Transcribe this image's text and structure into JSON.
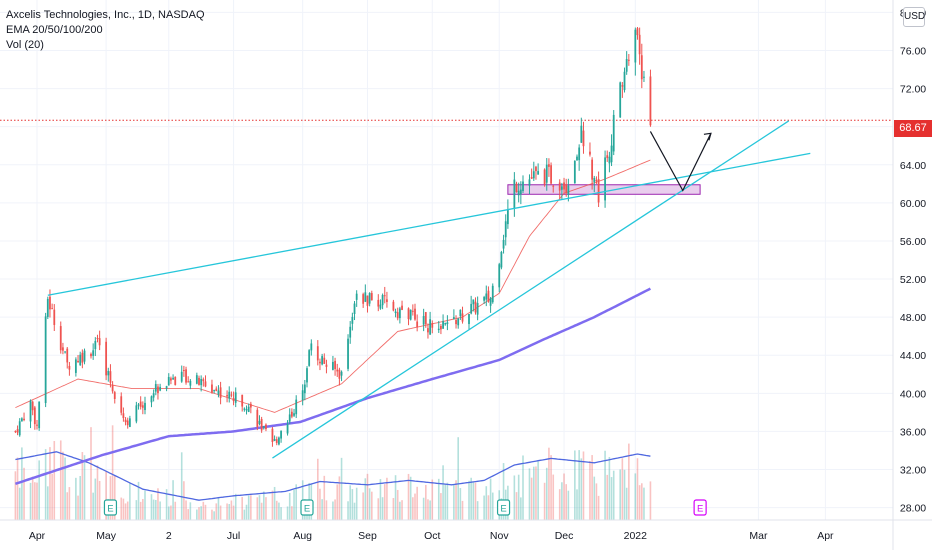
{
  "legend": {
    "symbol": "Axcelis Technologies, Inc., 1D, NASDAQ",
    "ema": "EMA 20/50/100/200",
    "vol": "Vol (20)"
  },
  "currency": "USD",
  "last_price": "68.67",
  "colors": {
    "up": "#26a69a",
    "down": "#ef5350",
    "ema20": "#ef5350",
    "ema100": "#7e6cf0",
    "vol_ma": "#4f68e0",
    "trendline": "#26c6da",
    "zone_fill": "#e1bee7",
    "zone_border": "#9c27b0",
    "earnings": "#26a69a",
    "earnings_upcoming": "#d500f9"
  },
  "chart_data": {
    "type": "candlestick",
    "price_axis": {
      "ticks": [
        "80.00",
        "76.00",
        "72.00",
        "68.00",
        "64.00",
        "60.00",
        "56.00",
        "52.00",
        "48.00",
        "44.00",
        "40.00",
        "36.00",
        "32.00",
        "28.00"
      ],
      "ylim": [
        26.7,
        81.3
      ]
    },
    "time_axis": {
      "ticks": [
        "Apr",
        "May",
        "2",
        "Jul",
        "Aug",
        "Sep",
        "Oct",
        "Nov",
        "Dec",
        "2022",
        "Mar",
        "Apr"
      ]
    },
    "price_anchors": [
      [
        "2021-03-22",
        36
      ],
      [
        "2021-03-29",
        39
      ],
      [
        "2021-04-01",
        36.5
      ],
      [
        "2021-04-06",
        50
      ],
      [
        "2021-04-15",
        43
      ],
      [
        "2021-04-29",
        45
      ],
      [
        "2021-05-12",
        37
      ],
      [
        "2021-05-26",
        40.5
      ],
      [
        "2021-06-07",
        42
      ],
      [
        "2021-06-21",
        40.5
      ],
      [
        "2021-07-07",
        39
      ],
      [
        "2021-07-19",
        34.5
      ],
      [
        "2021-08-02",
        40
      ],
      [
        "2021-08-05",
        45
      ],
      [
        "2021-08-13",
        43
      ],
      [
        "2021-08-20",
        42
      ],
      [
        "2021-08-26",
        50
      ],
      [
        "2021-09-08",
        49.5
      ],
      [
        "2021-09-22",
        48
      ],
      [
        "2021-10-04",
        46.5
      ],
      [
        "2021-10-20",
        49
      ],
      [
        "2021-10-28",
        50
      ],
      [
        "2021-11-05",
        59
      ],
      [
        "2021-11-08",
        62
      ],
      [
        "2021-11-22",
        63
      ],
      [
        "2021-12-03",
        62
      ],
      [
        "2021-12-09",
        67.5
      ],
      [
        "2021-12-17",
        61
      ],
      [
        "2021-12-23",
        67
      ],
      [
        "2021-12-29",
        74
      ],
      [
        "2022-01-04",
        78
      ],
      [
        "2022-01-07",
        72
      ],
      [
        "2022-01-10",
        68.7
      ]
    ],
    "ema20_anchors": [
      [
        "2021-03-22",
        38.5
      ],
      [
        "2021-04-20",
        41.5
      ],
      [
        "2021-05-15",
        40.5
      ],
      [
        "2021-06-15",
        40.5
      ],
      [
        "2021-07-20",
        38
      ],
      [
        "2021-08-20",
        41
      ],
      [
        "2021-09-15",
        46.5
      ],
      [
        "2021-10-15",
        48
      ],
      [
        "2021-11-01",
        50.5
      ],
      [
        "2021-11-15",
        56.5
      ],
      [
        "2021-12-01",
        61
      ],
      [
        "2021-12-20",
        62.5
      ],
      [
        "2022-01-10",
        64.5
      ]
    ],
    "ema100_anchors": [
      [
        "2021-03-22",
        30.5
      ],
      [
        "2021-05-01",
        33.5
      ],
      [
        "2021-06-01",
        35.5
      ],
      [
        "2021-07-01",
        36
      ],
      [
        "2021-08-01",
        37
      ],
      [
        "2021-09-01",
        39.5
      ],
      [
        "2021-10-01",
        41.5
      ],
      [
        "2021-11-01",
        43.5
      ],
      [
        "2021-11-20",
        45.5
      ],
      [
        "2021-12-15",
        48
      ],
      [
        "2022-01-10",
        51
      ]
    ],
    "volume_ma_anchors": [
      [
        "2021-03-22",
        0.55
      ],
      [
        "2021-04-10",
        0.62
      ],
      [
        "2021-04-25",
        0.52
      ],
      [
        "2021-05-20",
        0.28
      ],
      [
        "2021-06-15",
        0.18
      ],
      [
        "2021-07-01",
        0.22
      ],
      [
        "2021-07-25",
        0.26
      ],
      [
        "2021-08-10",
        0.35
      ],
      [
        "2021-09-01",
        0.32
      ],
      [
        "2021-09-20",
        0.36
      ],
      [
        "2021-10-10",
        0.32
      ],
      [
        "2021-10-25",
        0.36
      ],
      [
        "2021-11-08",
        0.5
      ],
      [
        "2021-11-25",
        0.56
      ],
      [
        "2021-12-15",
        0.52
      ],
      [
        "2022-01-04",
        0.6
      ],
      [
        "2022-01-10",
        0.58
      ]
    ],
    "overlay_lines": [
      {
        "name": "trendline-upper",
        "from": [
          "2021-04-06",
          50.3
        ],
        "to": [
          "2022-03-25",
          65.2
        ]
      },
      {
        "name": "trendline-rising",
        "from": [
          "2021-07-19",
          33.2
        ],
        "to": [
          "2022-03-15",
          68.6
        ]
      }
    ],
    "support_zone": {
      "from": "2021-11-05",
      "to": "2022-02-02",
      "low": 60.9,
      "high": 61.9
    },
    "projection": [
      [
        "2022-01-10",
        67.5
      ],
      [
        "2022-01-25",
        61.3
      ],
      [
        "2022-02-07",
        67.3
      ]
    ],
    "last_price_line": 68.67,
    "earnings_markers": [
      {
        "date": "2021-05-05",
        "label": "E",
        "upcoming": false
      },
      {
        "date": "2021-08-04",
        "label": "E",
        "upcoming": false
      },
      {
        "date": "2021-11-03",
        "label": "E",
        "upcoming": false
      },
      {
        "date": "2022-02-02",
        "label": "E",
        "upcoming": true
      }
    ]
  }
}
